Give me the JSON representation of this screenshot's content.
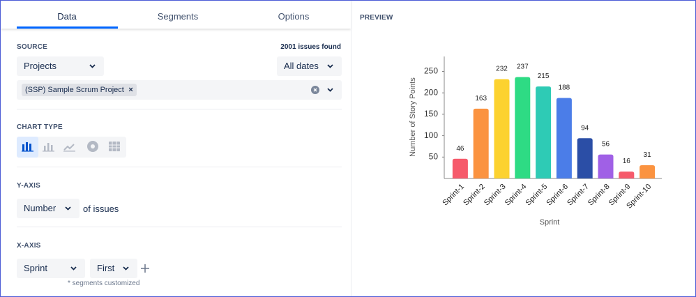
{
  "tabs": [
    "Data",
    "Segments",
    "Options"
  ],
  "source": {
    "label": "SOURCE",
    "issues_found": "2001 issues found",
    "project_select": "Projects",
    "date_select": "All dates",
    "selected_project": "(SSP) Sample Scrum Project"
  },
  "chart_type": {
    "label": "CHART TYPE"
  },
  "y_axis": {
    "label": "Y-AXIS",
    "select": "Number",
    "suffix": "of issues"
  },
  "x_axis": {
    "label": "X-AXIS",
    "select": "Sprint",
    "order_select": "First",
    "note": "* segments customized"
  },
  "preview": {
    "label": "PREVIEW"
  },
  "chart_data": {
    "type": "bar",
    "xlabel": "Sprint",
    "ylabel": "Number of Story Points",
    "categories": [
      "Sprint-1",
      "Sprint-2",
      "Sprint-3",
      "Sprint-4",
      "Sprint-5",
      "Sprint-6",
      "Sprint-7",
      "Sprint-8",
      "Sprint-9",
      "Sprint-10"
    ],
    "values": [
      46,
      163,
      232,
      237,
      215,
      188,
      94,
      56,
      16,
      31
    ],
    "colors": [
      "#f65a6b",
      "#fb9340",
      "#fcd22f",
      "#2edb84",
      "#2ecbb5",
      "#4b7de8",
      "#2b4ea6",
      "#a060e6",
      "#f65a6b",
      "#fb9340"
    ],
    "ylim": [
      0,
      285
    ],
    "yticks": [
      50,
      100,
      150,
      200,
      250
    ]
  }
}
